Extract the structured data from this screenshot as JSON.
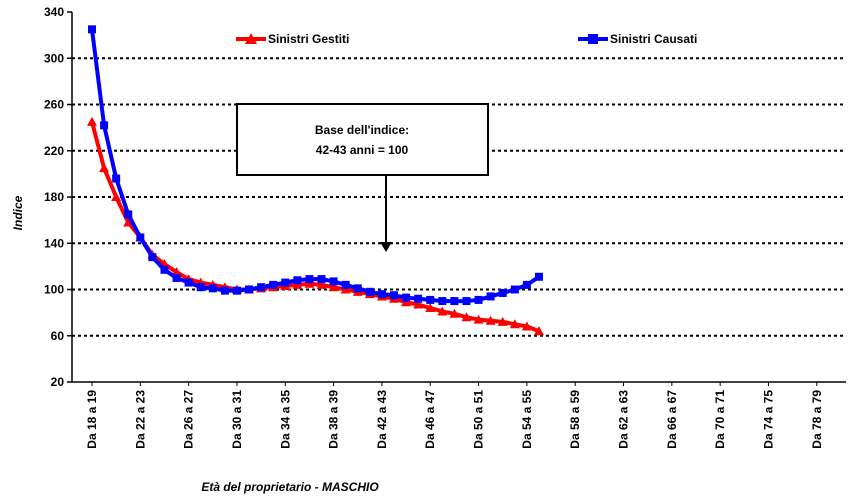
{
  "chart_data": {
    "type": "line",
    "title": "",
    "xlabel": "Età del proprietario - MASCHIO",
    "ylabel": "Indice",
    "ylim": [
      20,
      340
    ],
    "yticks": [
      20,
      60,
      100,
      140,
      180,
      220,
      260,
      300,
      340
    ],
    "grid": true,
    "legend_position": "top",
    "tick_labels": [
      "Da 18 a 19",
      "Da 22 a 23",
      "Da 26 a 27",
      "Da 30 a 31",
      "Da 34 a 35",
      "Da 38 a 39",
      "Da 42 a 43",
      "Da 46 a 47",
      "Da 50 a 51",
      "Da 54 a 55",
      "Da 58 a 59",
      "Da 62 a 63",
      "Da 66 a 67",
      "Da 70 a 71",
      "Da 74 a 75",
      "Da 78 a 79"
    ],
    "series": [
      {
        "name": "Sinistri Gestiti",
        "color": "#ff0000",
        "marker": "triangle",
        "values": [
          245,
          205,
          180,
          158,
          145,
          130,
          122,
          115,
          109,
          106,
          104,
          102,
          100,
          100,
          101,
          102,
          103,
          104,
          105,
          104,
          102,
          100,
          98,
          96,
          94,
          92,
          89,
          87,
          84,
          81,
          79,
          76,
          74,
          73,
          72,
          70,
          68,
          64
        ]
      },
      {
        "name": "Sinistri Causati",
        "color": "#0000ff",
        "marker": "square",
        "values": [
          325,
          242,
          196,
          165,
          145,
          128,
          117,
          110,
          106,
          102,
          101,
          99,
          99,
          100,
          102,
          104,
          106,
          108,
          109,
          109,
          107,
          104,
          101,
          98,
          96,
          95,
          93,
          92,
          91,
          90,
          90,
          90,
          91,
          94,
          97,
          100,
          104,
          111
        ]
      }
    ],
    "annotation": {
      "lines": [
        "Base dell'indice:",
        "42-43 anni = 100"
      ],
      "points_to_label": "Da 42 a 43"
    }
  }
}
